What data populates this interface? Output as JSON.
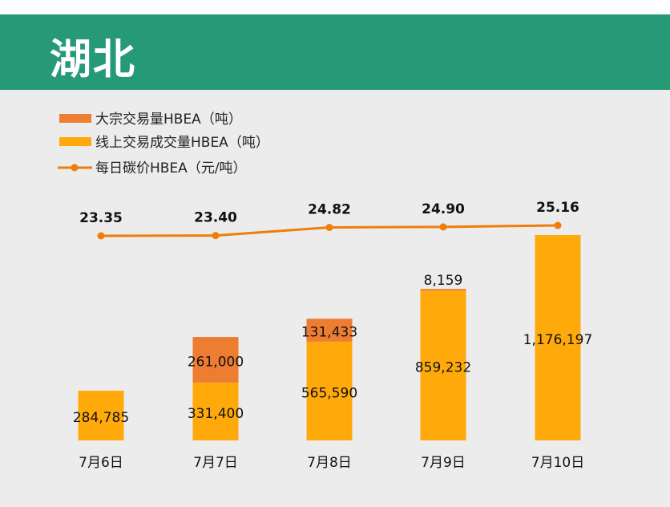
{
  "header": {
    "title": "湖北"
  },
  "colors": {
    "header": "#269a76",
    "bulk": "#ed7d31",
    "online": "#ffaa0a",
    "line": "#f07d0a",
    "panel": "#ececec"
  },
  "chart_data": {
    "type": "bar",
    "title": "湖北",
    "categories": [
      "7月6日",
      "7月7日",
      "7月8日",
      "7月9日",
      "7月10日"
    ],
    "series": [
      {
        "name": "线上交易成交量HBEA（吨）",
        "kind": "stacked-bar",
        "values": [
          284785,
          331400,
          565590,
          859232,
          1176197
        ],
        "labels": [
          "284,785",
          "331,400",
          "565,590",
          "859,232",
          "1,176,197"
        ]
      },
      {
        "name": "大宗交易量HBEA（吨）",
        "kind": "stacked-bar",
        "values": [
          0,
          261000,
          131433,
          8159,
          0
        ],
        "labels": [
          "",
          "261,000",
          "131,433",
          "8,159",
          ""
        ]
      },
      {
        "name": "每日碳价HBEA（元/吨）",
        "kind": "line",
        "values": [
          23.35,
          23.4,
          24.82,
          24.9,
          25.16
        ],
        "labels": [
          "23.35",
          "23.40",
          "24.82",
          "24.90",
          "25.16"
        ]
      }
    ],
    "legend": {
      "placement": "top-left",
      "entries": [
        "大宗交易量HBEA（吨）",
        "线上交易成交量HBEA（吨）",
        "每日碳价HBEA（元/吨）"
      ]
    },
    "grid": false
  }
}
